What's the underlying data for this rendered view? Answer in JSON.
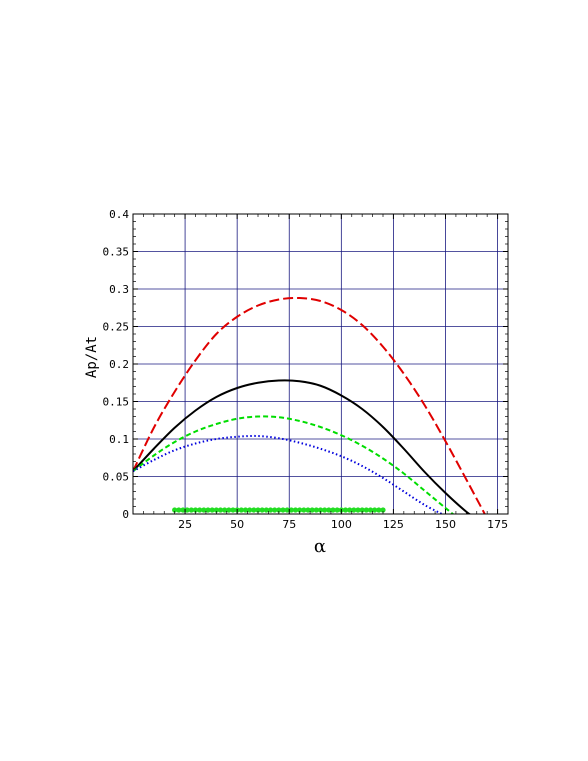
{
  "chart_data": {
    "type": "line",
    "xlabel": "α",
    "ylabel": "Ap/At",
    "xlim": [
      0,
      180
    ],
    "ylim": [
      0,
      0.4
    ],
    "xticks": [
      25,
      50,
      75,
      100,
      125,
      150,
      175
    ],
    "yticks": [
      0,
      0.05,
      0.1,
      0.15,
      0.2,
      0.25,
      0.3,
      0.35,
      0.4
    ],
    "ytick_labels": [
      "0",
      "0.05",
      "0.1",
      "0.15",
      "0.2",
      "0.25",
      "0.3",
      "0.35",
      "0.4"
    ],
    "xtick_labels": [
      "25",
      "50",
      "75",
      "100",
      "125",
      "150",
      "175"
    ],
    "grid": true,
    "series": [
      {
        "style": "long-dash",
        "color": "#e00000",
        "x": [
          0,
          10,
          20,
          30,
          40,
          50,
          60,
          70,
          80,
          90,
          100,
          110,
          120,
          130,
          140,
          150,
          160,
          170
        ],
        "y": [
          0.057,
          0.115,
          0.163,
          0.205,
          0.24,
          0.263,
          0.278,
          0.286,
          0.288,
          0.284,
          0.272,
          0.252,
          0.223,
          0.187,
          0.145,
          0.097,
          0.046,
          -0.006
        ]
      },
      {
        "style": "solid",
        "color": "#000000",
        "x": [
          0,
          10,
          20,
          30,
          40,
          50,
          60,
          70,
          80,
          90,
          100,
          110,
          120,
          130,
          140,
          150,
          160,
          163
        ],
        "y": [
          0.057,
          0.087,
          0.115,
          0.138,
          0.156,
          0.168,
          0.175,
          0.178,
          0.177,
          0.171,
          0.158,
          0.14,
          0.116,
          0.087,
          0.056,
          0.028,
          0.003,
          -0.002
        ]
      },
      {
        "style": "short-dash",
        "color": "#00dd00",
        "x": [
          0,
          10,
          20,
          30,
          40,
          50,
          60,
          70,
          80,
          90,
          100,
          110,
          120,
          130,
          140,
          150,
          154
        ],
        "y": [
          0.057,
          0.078,
          0.096,
          0.11,
          0.12,
          0.127,
          0.13,
          0.129,
          0.124,
          0.116,
          0.105,
          0.091,
          0.074,
          0.054,
          0.031,
          0.008,
          -0.001
        ]
      },
      {
        "style": "dotted",
        "color": "#0000dd",
        "x": [
          0,
          10,
          20,
          30,
          40,
          50,
          60,
          70,
          80,
          90,
          100,
          110,
          120,
          130,
          140,
          149
        ],
        "y": [
          0.057,
          0.072,
          0.085,
          0.094,
          0.1,
          0.103,
          0.104,
          0.101,
          0.095,
          0.087,
          0.077,
          0.064,
          0.048,
          0.03,
          0.012,
          -0.001
        ]
      }
    ],
    "markers": {
      "color": "#22dd22",
      "y": 0.004,
      "x_start": 20,
      "x_end": 120,
      "step": 2
    }
  }
}
